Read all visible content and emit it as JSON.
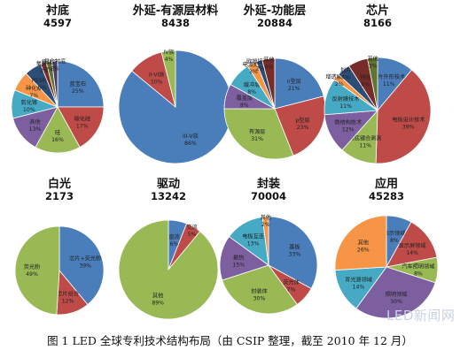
{
  "caption": "图 1 LED 全球专利技术结构布局（由 CSIP 整理，截至 2010 年 12 月）",
  "watermark": "LED新闻网",
  "chart_data": [
    {
      "type": "pie",
      "title": "衬底",
      "total": "4597",
      "slices": [
        {
          "label": "蓝宝石",
          "value": 25,
          "display": "25%",
          "color": "#4a7ebb"
        },
        {
          "label": "碳化硅",
          "value": 17,
          "display": "17%",
          "color": "#be4b48"
        },
        {
          "label": "硅",
          "value": 16,
          "display": "16%",
          "color": "#98b954"
        },
        {
          "label": "其他",
          "value": 13,
          "display": "13%",
          "color": "#7d5fa0"
        },
        {
          "label": "氮化镓",
          "value": 10,
          "display": "10%",
          "color": "#46aac5"
        },
        {
          "label": "砷化镓",
          "value": 7,
          "display": "7%",
          "color": "#f69546"
        },
        {
          "label": "PSS衬底",
          "value": 6,
          "display": "6%",
          "color": "#2c4d75"
        },
        {
          "label": "氧化锌",
          "value": 2,
          "display": "2%",
          "color": "#772c2a"
        },
        {
          "label": "氧化铝",
          "value": 2,
          "display": "2%",
          "color": "#5f7530"
        },
        {
          "label": "复合衬底",
          "value": 2,
          "display": "2%",
          "color": "#4d3b62"
        }
      ]
    },
    {
      "type": "pie",
      "title": "外延-有源层材料",
      "total": "8438",
      "slices": [
        {
          "label": "III-V族",
          "value": 86,
          "display": "86%",
          "color": "#4a7ebb"
        },
        {
          "label": "II-VI族",
          "value": 10,
          "display": "10%",
          "color": "#be4b48"
        },
        {
          "label": "IV族",
          "value": 4,
          "display": "4%",
          "color": "#98b954"
        }
      ]
    },
    {
      "type": "pie",
      "title": "外延-功能层",
      "total": "20884",
      "slices": [
        {
          "label": "n型层",
          "value": 21,
          "display": "21%",
          "color": "#4a7ebb"
        },
        {
          "label": "p型层",
          "value": 23,
          "display": "23%",
          "color": "#be4b48"
        },
        {
          "label": "有源层",
          "value": 31,
          "display": "31%",
          "color": "#98b954"
        },
        {
          "label": "覆盖层",
          "value": 8,
          "display": "8%",
          "color": "#7d5fa0"
        },
        {
          "label": "缓冲层",
          "value": 8,
          "display": "8%",
          "color": "#46aac5"
        },
        {
          "label": "电流扩展",
          "value": 3,
          "display": "3%",
          "color": "#f69546"
        },
        {
          "label": "欧姆接触层",
          "value": 2,
          "display": "2%",
          "color": "#2c4d75"
        },
        {
          "label": "其他",
          "value": 4,
          "display": "4%",
          "color": "#772c2a"
        }
      ]
    },
    {
      "type": "pie",
      "title": "芯片",
      "total": "8166",
      "slices": [
        {
          "label": "芯片外形技术",
          "value": 11,
          "display": "11%",
          "color": "#4a7ebb"
        },
        {
          "label": "电极设计技术",
          "value": 39,
          "display": "39%",
          "color": "#be4b48"
        },
        {
          "label": "衬底键合剥离",
          "value": 11,
          "display": "11%",
          "color": "#98b954"
        },
        {
          "label": "微结构技术",
          "value": 12,
          "display": "12%",
          "color": "#7d5fa0"
        },
        {
          "label": "反射膜技术",
          "value": 11,
          "display": "11%",
          "color": "#46aac5"
        },
        {
          "label": "增透膜技术",
          "value": 2,
          "display": "2%",
          "color": "#f69546"
        },
        {
          "label": "划片",
          "value": 4,
          "display": "4%",
          "color": "#2c4d75"
        },
        {
          "label": "钝化",
          "value": 6,
          "display": "6%",
          "color": "#772c2a"
        },
        {
          "label": "其他",
          "value": 3,
          "display": "3%",
          "color": "#5f7530"
        }
      ]
    },
    {
      "type": "pie",
      "title": "白光",
      "total": "2173",
      "slices": [
        {
          "label": "芯片+荧光粉",
          "value": 39,
          "display": "39%",
          "color": "#4a7ebb"
        },
        {
          "label": "芯片组合",
          "value": 12,
          "display": "12%",
          "color": "#be4b48"
        },
        {
          "label": "荧光粉",
          "value": 49,
          "display": "49%",
          "color": "#98b954"
        }
      ]
    },
    {
      "type": "pie",
      "title": "驱动",
      "total": "13242",
      "slices": [
        {
          "label": "直流",
          "value": 6,
          "display": "6%",
          "color": "#4a7ebb"
        },
        {
          "label": "交流",
          "value": 5,
          "display": "5%",
          "color": "#be4b48"
        },
        {
          "label": "其他",
          "value": 89,
          "display": "89%",
          "color": "#98b954"
        }
      ]
    },
    {
      "type": "pie",
      "title": "封装",
      "total": "70004",
      "slices": [
        {
          "label": "基板",
          "value": 33,
          "display": "33%",
          "color": "#4a7ebb"
        },
        {
          "label": "荧光体",
          "value": 7,
          "display": "7%",
          "color": "#be4b48"
        },
        {
          "label": "封装体",
          "value": 30,
          "display": "30%",
          "color": "#98b954"
        },
        {
          "label": "散热",
          "value": 15,
          "display": "15%",
          "color": "#7d5fa0"
        },
        {
          "label": "电极互连",
          "value": 13,
          "display": "13%",
          "color": "#46aac5"
        },
        {
          "label": "其他",
          "value": 2,
          "display": "2%",
          "color": "#f69546"
        }
      ]
    },
    {
      "type": "pie",
      "title": "应用",
      "total": "45283",
      "slices": [
        {
          "label": "指示领域",
          "value": 8,
          "display": "8%",
          "color": "#4a7ebb"
        },
        {
          "label": "显示屏领域",
          "value": 14,
          "display": "14%",
          "color": "#be4b48"
        },
        {
          "label": "汽车照明领域",
          "value": 8,
          "display": "8%",
          "color": "#98b954"
        },
        {
          "label": "照明领域",
          "value": 30,
          "display": "30%",
          "color": "#7d5fa0"
        },
        {
          "label": "背光源领域",
          "value": 14,
          "display": "14%",
          "color": "#46aac5"
        },
        {
          "label": "其他",
          "value": 26,
          "display": "26%",
          "color": "#f69546"
        }
      ]
    }
  ]
}
